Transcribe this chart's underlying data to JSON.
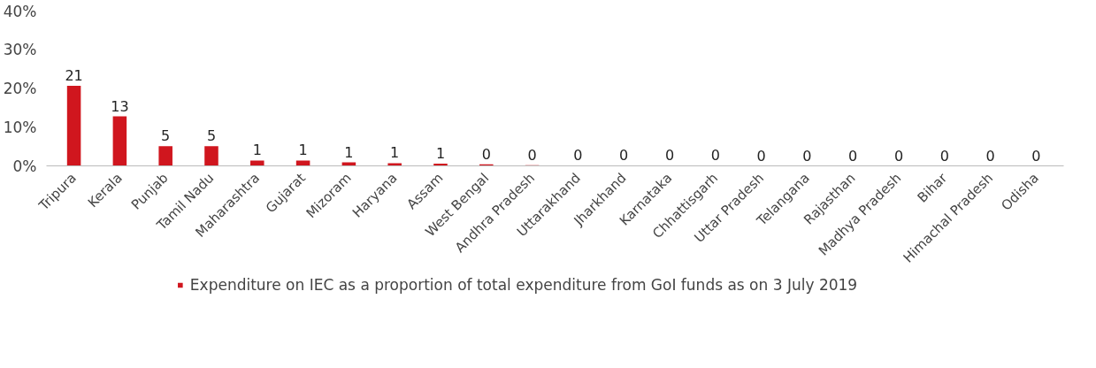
{
  "chart_data": {
    "type": "bar",
    "categories": [
      "Tripura",
      "Kerala",
      "Punjab",
      "Tamil Nadu",
      "Maharashtra",
      "Gujarat",
      "Mizoram",
      "Haryana",
      "Assam",
      "West Bengal",
      "Andhra Pradesh",
      "Uttarakhand",
      "Jharkhand",
      "Karnataka",
      "Chhattisgarh",
      "Uttar Pradesh",
      "Telangana",
      "Rajasthan",
      "Madhya Pradesh",
      "Bihar",
      "Himachal Pradesh",
      "Odisha"
    ],
    "series": [
      {
        "name": "Expenditure on IEC as a proportion of total expenditure from GoI funds as on 3 July 2019",
        "color": "#d0161e",
        "values": [
          20.7,
          12.8,
          5.1,
          5.1,
          1.4,
          1.4,
          0.9,
          0.7,
          0.6,
          0.4,
          0.2,
          0.1,
          0.1,
          0.1,
          0.1,
          0,
          0,
          0,
          0,
          0,
          0,
          0
        ],
        "value_labels": [
          "21",
          "13",
          "5",
          "5",
          "1",
          "1",
          "1",
          "1",
          "1",
          "0",
          "0",
          "0",
          "0",
          "0",
          "0",
          "0",
          "0",
          "0",
          "0",
          "0",
          "0",
          "0"
        ]
      }
    ],
    "ylim": [
      0,
      40
    ],
    "yticks": [
      {
        "value": 0,
        "label": "0%"
      },
      {
        "value": 10,
        "label": "10%"
      },
      {
        "value": 20,
        "label": "20%"
      },
      {
        "value": 30,
        "label": "30%"
      },
      {
        "value": 40,
        "label": "40%"
      }
    ],
    "grid": false,
    "legend": "bottom"
  }
}
